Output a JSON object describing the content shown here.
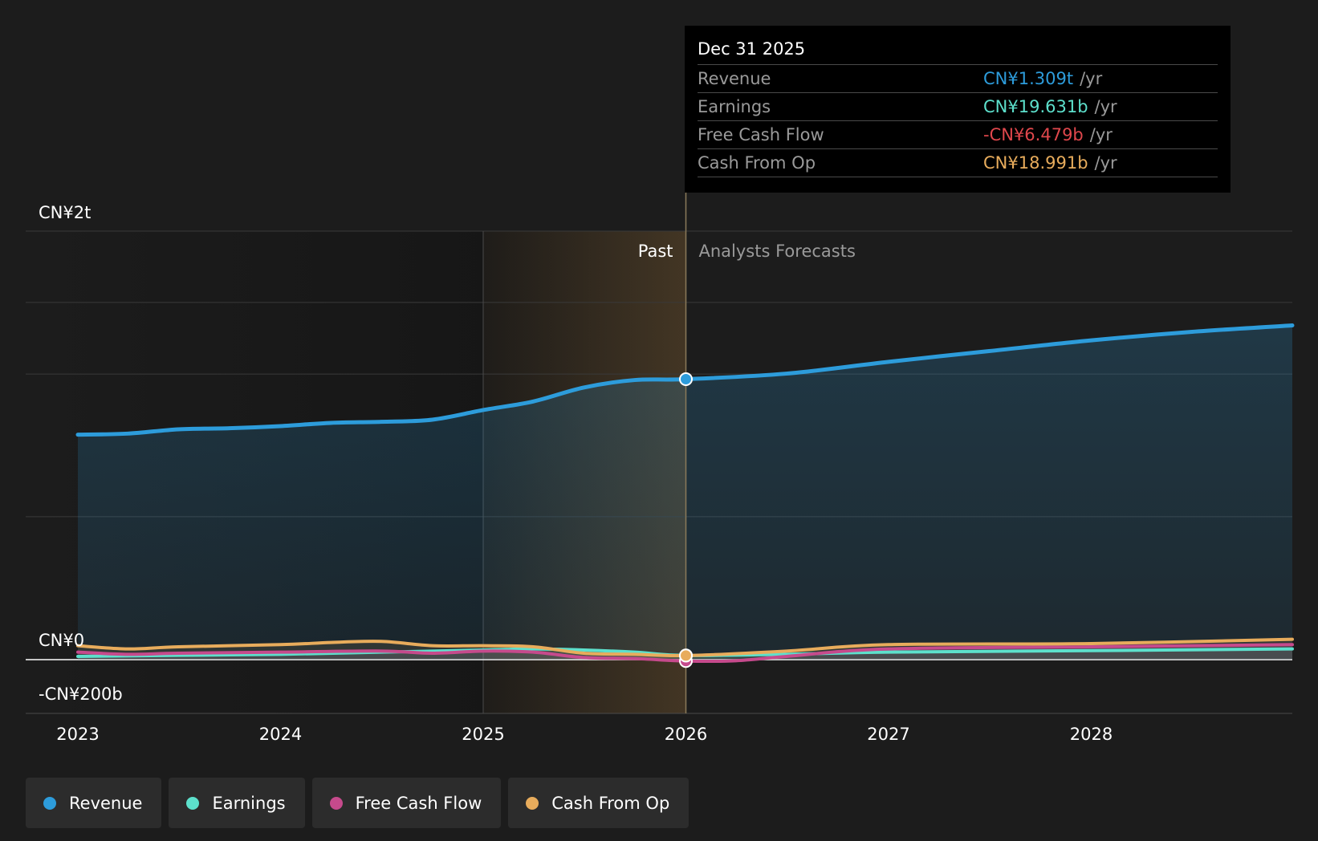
{
  "chart_data": {
    "type": "area",
    "title": "",
    "y_axis": {
      "ticks": [
        "CN¥2t",
        "CN¥0",
        "-CN¥200b"
      ],
      "ylim_billions": [
        -200,
        2000
      ]
    },
    "x_axis": {
      "ticks": [
        "2023",
        "2024",
        "2025",
        "2026",
        "2027",
        "2028"
      ]
    },
    "regions": {
      "past_label": "Past",
      "forecast_label": "Analysts Forecasts",
      "divider_date": "2026-01-01"
    },
    "series": [
      {
        "name": "Revenue",
        "color": "#2d9cdb",
        "unit": "billions CNY",
        "points": [
          [
            "2023-01-01",
            1050
          ],
          [
            "2023-04-01",
            1055
          ],
          [
            "2023-07-01",
            1075
          ],
          [
            "2023-10-01",
            1080
          ],
          [
            "2024-01-01",
            1090
          ],
          [
            "2024-04-01",
            1105
          ],
          [
            "2024-07-01",
            1110
          ],
          [
            "2024-10-01",
            1120
          ],
          [
            "2025-01-01",
            1165
          ],
          [
            "2025-04-01",
            1205
          ],
          [
            "2025-07-01",
            1270
          ],
          [
            "2025-10-01",
            1305
          ],
          [
            "2026-01-01",
            1309
          ],
          [
            "2026-07-01",
            1335
          ],
          [
            "2027-01-01",
            1390
          ],
          [
            "2027-07-01",
            1440
          ],
          [
            "2028-01-01",
            1490
          ],
          [
            "2028-07-01",
            1530
          ],
          [
            "2029-01-01",
            1560
          ]
        ]
      },
      {
        "name": "Earnings",
        "color": "#5de0cc",
        "unit": "billions CNY",
        "points": [
          [
            "2023-01-01",
            15
          ],
          [
            "2023-07-01",
            20
          ],
          [
            "2024-01-01",
            25
          ],
          [
            "2024-07-01",
            35
          ],
          [
            "2025-01-01",
            45
          ],
          [
            "2025-04-01",
            50
          ],
          [
            "2025-07-01",
            45
          ],
          [
            "2025-10-01",
            35
          ],
          [
            "2026-01-01",
            19.631
          ],
          [
            "2026-07-01",
            25
          ],
          [
            "2027-01-01",
            35
          ],
          [
            "2028-01-01",
            42
          ],
          [
            "2029-01-01",
            50
          ]
        ]
      },
      {
        "name": "Free Cash Flow",
        "color": "#c64a8c",
        "unit": "billions CNY",
        "points": [
          [
            "2023-01-01",
            35
          ],
          [
            "2023-04-01",
            25
          ],
          [
            "2023-07-01",
            30
          ],
          [
            "2024-01-01",
            35
          ],
          [
            "2024-07-01",
            40
          ],
          [
            "2024-10-01",
            30
          ],
          [
            "2025-01-01",
            40
          ],
          [
            "2025-04-01",
            35
          ],
          [
            "2025-07-01",
            10
          ],
          [
            "2025-10-01",
            5
          ],
          [
            "2026-01-01",
            -6.479
          ],
          [
            "2026-04-01",
            -5
          ],
          [
            "2026-07-01",
            15
          ],
          [
            "2027-01-01",
            50
          ],
          [
            "2028-01-01",
            60
          ],
          [
            "2029-01-01",
            70
          ]
        ]
      },
      {
        "name": "Cash From Op",
        "color": "#e8ac5c",
        "unit": "billions CNY",
        "points": [
          [
            "2023-01-01",
            65
          ],
          [
            "2023-04-01",
            50
          ],
          [
            "2023-07-01",
            60
          ],
          [
            "2024-01-01",
            70
          ],
          [
            "2024-04-01",
            80
          ],
          [
            "2024-07-01",
            85
          ],
          [
            "2024-10-01",
            65
          ],
          [
            "2025-01-01",
            65
          ],
          [
            "2025-04-01",
            60
          ],
          [
            "2025-07-01",
            30
          ],
          [
            "2025-10-01",
            25
          ],
          [
            "2026-01-01",
            18.991
          ],
          [
            "2026-07-01",
            40
          ],
          [
            "2027-01-01",
            70
          ],
          [
            "2028-01-01",
            75
          ],
          [
            "2029-01-01",
            95
          ]
        ]
      }
    ],
    "highlight_date": "2026-01-01",
    "grid": true,
    "legend_position": "bottom-left"
  },
  "tooltip": {
    "date": "Dec 31 2025",
    "rows": [
      {
        "label": "Revenue",
        "value": "CN¥1.309t",
        "unit": "/yr",
        "color": "#2d9cdb"
      },
      {
        "label": "Earnings",
        "value": "CN¥19.631b",
        "unit": "/yr",
        "color": "#5de0cc"
      },
      {
        "label": "Free Cash Flow",
        "value": "-CN¥6.479b",
        "unit": "/yr",
        "color": "#e0474c"
      },
      {
        "label": "Cash From Op",
        "value": "CN¥18.991b",
        "unit": "/yr",
        "color": "#e8ac5c"
      }
    ]
  },
  "legend": [
    {
      "label": "Revenue",
      "color": "#2d9cdb"
    },
    {
      "label": "Earnings",
      "color": "#5de0cc"
    },
    {
      "label": "Free Cash Flow",
      "color": "#c64a8c"
    },
    {
      "label": "Cash From Op",
      "color": "#e8ac5c"
    }
  ]
}
